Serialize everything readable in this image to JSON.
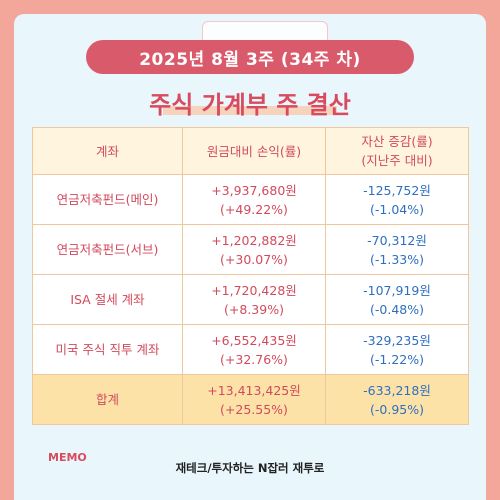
{
  "header": {
    "week_label": "2025년  8월  3주 (34주 차)",
    "title": "주식 가계부 주 결산"
  },
  "table": {
    "columns": [
      "계좌",
      "원금대비 손익(률)",
      "자산 증감(률)\n(지난주 대비)"
    ],
    "rows": [
      {
        "account": "연금저축펀드(메인)",
        "pl_amount": "+3,937,680원",
        "pl_rate": "(+49.22%)",
        "chg_amount": "-125,752원",
        "chg_rate": "(-1.04%)"
      },
      {
        "account": "연금저축펀드(서브)",
        "pl_amount": "+1,202,882원",
        "pl_rate": "(+30.07%)",
        "chg_amount": "-70,312원",
        "chg_rate": "(-1.33%)"
      },
      {
        "account": "ISA 절세 계좌",
        "pl_amount": "+1,720,428원",
        "pl_rate": "(+8.39%)",
        "chg_amount": "-107,919원",
        "chg_rate": "(-0.48%)"
      },
      {
        "account": "미국 주식 직투 계좌",
        "pl_amount": "+6,552,435원",
        "pl_rate": "(+32.76%)",
        "chg_amount": "-329,235원",
        "chg_rate": "(-1.22%)"
      }
    ],
    "total": {
      "account": "합계",
      "pl_amount": "+13,413,425원",
      "pl_rate": "(+25.55%)",
      "chg_amount": "-633,218원",
      "chg_rate": "(-0.95%)"
    }
  },
  "memo_label": "MEMO",
  "footer": "재테크/투자하는 N잡러 재투로",
  "colors": {
    "background": "#f3a69a",
    "card": "#e9f6fb",
    "accent": "#d95a6b",
    "positive": "#d24a5d",
    "negative": "#2f6fbf",
    "total_row": "#fde2a8"
  }
}
